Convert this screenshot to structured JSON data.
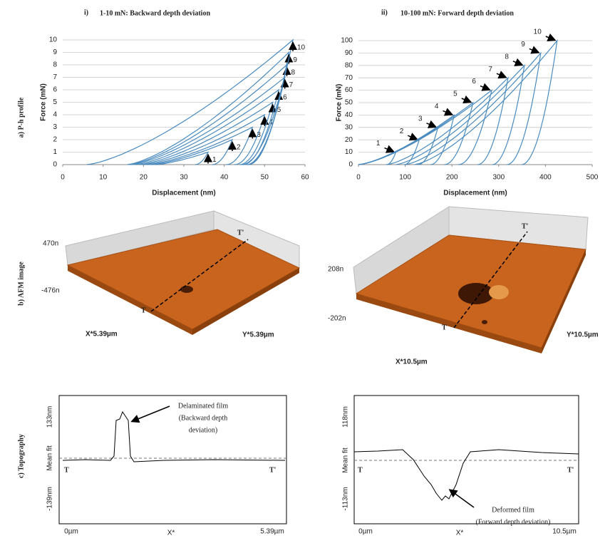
{
  "columns": [
    {
      "numeral": "i)",
      "title": "1-10 mN: Backward depth deviation"
    },
    {
      "numeral": "ii)",
      "title": "10-100 mN: Forward depth deviation"
    }
  ],
  "row_labels": [
    "a) P-h profile",
    "b) AFM image",
    "c) Topography"
  ],
  "ph_charts": [
    {
      "xlabel": "Displacement (nm)",
      "ylabel": "Force (mN)",
      "xlim": [
        0,
        60
      ],
      "ylim": [
        0,
        10
      ],
      "xticks": [
        0,
        10,
        20,
        30,
        40,
        50,
        60
      ],
      "yticks": [
        0,
        1,
        2,
        3,
        4,
        5,
        6,
        7,
        8,
        9,
        10
      ],
      "cycles": [
        {
          "label": "1",
          "start": 23,
          "depth": 36,
          "force": 1
        },
        {
          "label": "2",
          "start": 22,
          "depth": 42,
          "force": 2
        },
        {
          "label": "3",
          "start": 21,
          "depth": 47,
          "force": 3
        },
        {
          "label": "4",
          "start": 20,
          "depth": 50,
          "force": 4
        },
        {
          "label": "5",
          "start": 19,
          "depth": 52,
          "force": 5
        },
        {
          "label": "6",
          "start": 18,
          "depth": 53.5,
          "force": 6
        },
        {
          "label": "7",
          "start": 17,
          "depth": 55,
          "force": 7
        },
        {
          "label": "8",
          "start": 16.5,
          "depth": 55.5,
          "force": 8
        },
        {
          "label": "9",
          "start": 16,
          "depth": 56,
          "force": 9
        },
        {
          "label": "10",
          "start": 6,
          "depth": 57,
          "force": 10
        }
      ]
    },
    {
      "xlabel": "Displacement (nm)",
      "ylabel": "Force (mN)",
      "xlim": [
        0,
        500
      ],
      "ylim": [
        0,
        100
      ],
      "xticks": [
        0,
        100,
        200,
        300,
        400,
        500
      ],
      "yticks": [
        0,
        10,
        20,
        30,
        40,
        50,
        60,
        70,
        80,
        90,
        100
      ],
      "cycles": [
        {
          "label": "1",
          "start": 0,
          "depth": 80,
          "force": 10
        },
        {
          "label": "2",
          "start": 0,
          "depth": 130,
          "force": 20
        },
        {
          "label": "3",
          "start": 0,
          "depth": 170,
          "force": 30
        },
        {
          "label": "4",
          "start": 0,
          "depth": 205,
          "force": 40
        },
        {
          "label": "5",
          "start": 0,
          "depth": 245,
          "force": 50
        },
        {
          "label": "6",
          "start": 0,
          "depth": 285,
          "force": 60
        },
        {
          "label": "7",
          "start": 60,
          "depth": 320,
          "force": 70
        },
        {
          "label": "8",
          "start": 80,
          "depth": 355,
          "force": 80
        },
        {
          "label": "9",
          "start": 100,
          "depth": 390,
          "force": 90
        },
        {
          "label": "10",
          "start": 120,
          "depth": 425,
          "force": 100
        }
      ]
    }
  ],
  "afm": [
    {
      "z_top": "470n",
      "z_bottom": "-476n",
      "x_label": "X*5.39µm",
      "y_label": "Y*5.39µm",
      "t": "T",
      "t2": "T'"
    },
    {
      "z_top": "208n",
      "z_bottom": "-202n",
      "x_label": "X*10.5µm",
      "y_label": "Y*10.5µm",
      "t": "T",
      "t2": "T'"
    }
  ],
  "topography": [
    {
      "y_top": "133nm",
      "mean": "Mean fit",
      "y_bottom": "-139nm",
      "x_left": "0µm",
      "x_mid": "X*",
      "x_right": "5.39µm",
      "t": "T",
      "t2": "T'",
      "annotation": [
        "Delaminated film",
        "(Backward depth",
        "deviation)"
      ]
    },
    {
      "y_top": "118nm",
      "mean": "Mean fit",
      "y_bottom": "-113nm",
      "x_left": "0µm",
      "x_mid": "X*",
      "x_right": "10.5µm",
      "t": "T",
      "t2": "T'",
      "annotation": [
        "Deformed film",
        "(Forward depth deviation)"
      ]
    }
  ]
}
